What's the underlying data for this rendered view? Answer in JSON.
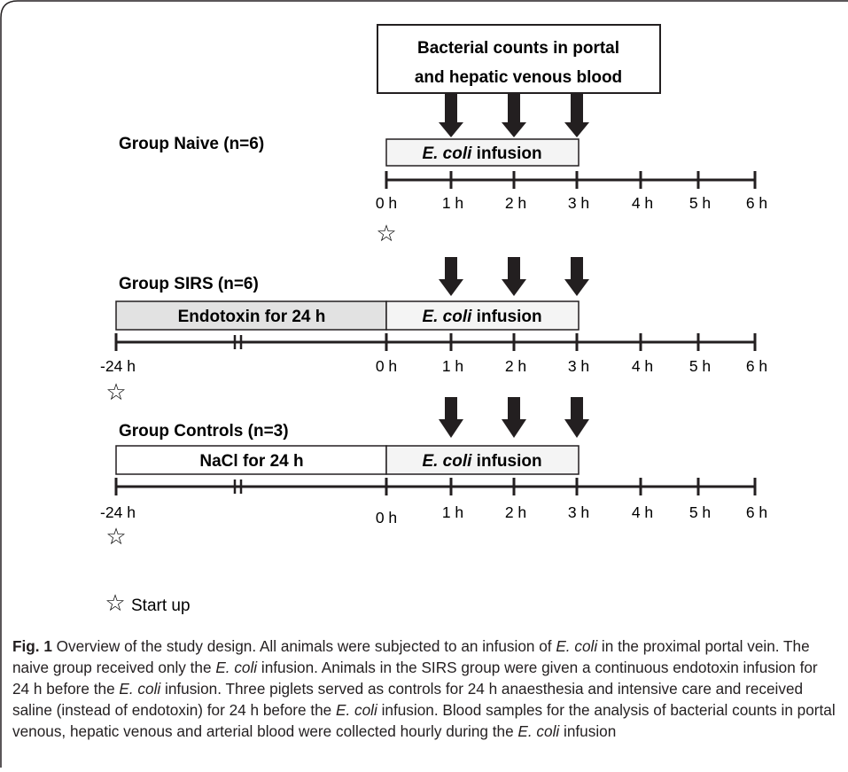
{
  "figure": {
    "annotation_box_line1": "Bacterial counts in portal",
    "annotation_box_line2": "and hepatic venous blood",
    "legend_star_label": "Start up",
    "start_star_symbol": "☆"
  },
  "groups": [
    {
      "title": "Group Naive (n=6)",
      "pre_phase_label": "",
      "infusion_label_italic": "E. coli",
      "infusion_label_rest": " infusion",
      "tick_labels": [
        "0 h",
        "1 h",
        "2 h",
        "3 h",
        "4 h",
        "5 h",
        "6 h"
      ]
    },
    {
      "title": "Group SIRS (n=6)",
      "pre_phase_label": "Endotoxin for 24 h",
      "infusion_label_italic": "E. coli",
      "infusion_label_rest": " infusion",
      "tick_labels": [
        "-24 h",
        "0 h",
        "1 h",
        "2 h",
        "3 h",
        "4 h",
        "5 h",
        "6 h"
      ]
    },
    {
      "title": "Group Controls (n=3)",
      "pre_phase_label": "NaCl for 24 h",
      "infusion_label_italic": "E. coli",
      "infusion_label_rest": " infusion",
      "tick_labels": [
        "-24 h",
        "0 h",
        "1 h",
        "2 h",
        "3 h",
        "4 h",
        "5 h",
        "6 h"
      ]
    }
  ],
  "caption": {
    "fig_label": "Fig. 1",
    "text_1": " Overview of the study design. All animals were subjected to an infusion of ",
    "italic_1": "E. coli",
    "text_2": " in the proximal portal vein. The naive group received only the ",
    "italic_2": "E. coli",
    "text_3": " infusion. Animals in the SIRS group were given a continuous endotoxin infusion for 24 h before the ",
    "italic_3": "E. coli",
    "text_4": " infusion. Three piglets served as controls for 24 h anaesthesia and intensive care and received saline (instead of endotoxin) for 24 h before the ",
    "italic_4": "E. coli",
    "text_5": " infusion. Blood samples for the analysis of bacterial counts in portal venous, hepatic venous and arterial blood were collected hourly during the ",
    "italic_5": "E. coli",
    "text_6": " infusion"
  }
}
